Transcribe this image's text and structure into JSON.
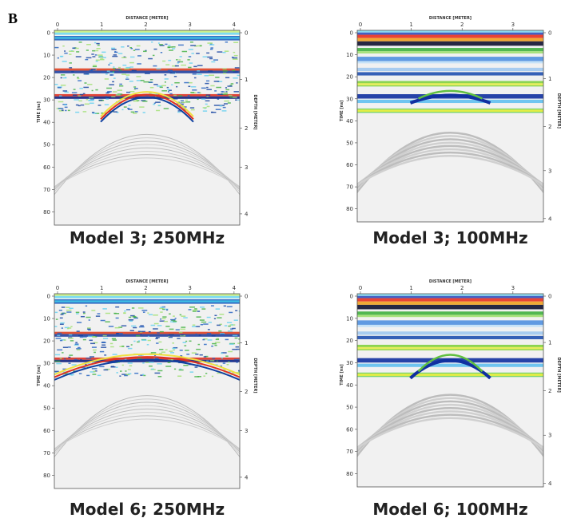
{
  "figure_label": "B",
  "panels": [
    {
      "caption": "Model 3; 250MHz",
      "x_axis_title": "DISTANCE [METER]",
      "y_axis_title": "TIME [ns]",
      "y2_axis_title": "DEPTH [METER]",
      "x_ticks": [
        0,
        1,
        2,
        3,
        4
      ],
      "y_ticks": [
        0,
        10,
        20,
        30,
        40,
        50,
        60,
        70,
        80
      ],
      "y2_ticks": [
        0,
        1,
        2,
        3,
        4
      ]
    },
    {
      "caption": "Model 3; 100MHz",
      "x_axis_title": "DISTANCE [METER]",
      "y_axis_title": "TIME [ns]",
      "y2_axis_title": "DEPTH [METER]",
      "x_ticks": [
        0,
        1,
        2,
        3
      ],
      "y_ticks": [
        0,
        10,
        20,
        30,
        40,
        50,
        60,
        70,
        80
      ],
      "y2_ticks": [
        0,
        1,
        2,
        3,
        4
      ]
    },
    {
      "caption": "Model 6; 250MHz",
      "x_axis_title": "DISTANCE [METER]",
      "y_axis_title": "TIME [ns]",
      "y2_axis_title": "DEPTH [METER]",
      "x_ticks": [
        0,
        1,
        2,
        3,
        4
      ],
      "y_ticks": [
        0,
        10,
        20,
        30,
        40,
        50,
        60,
        70,
        80
      ],
      "y2_ticks": [
        0,
        1,
        2,
        3,
        4
      ]
    },
    {
      "caption": "Model 6; 100MHz",
      "x_axis_title": "DISTANCE [METER]",
      "y_axis_title": "TIME [ns]",
      "y2_axis_title": "DEPTH [METER]",
      "x_ticks": [
        0,
        1,
        2,
        3
      ],
      "y_ticks": [
        0,
        10,
        20,
        30,
        40,
        50,
        60,
        70,
        80
      ],
      "y2_ticks": [
        0,
        1,
        2,
        3,
        4
      ]
    }
  ]
}
